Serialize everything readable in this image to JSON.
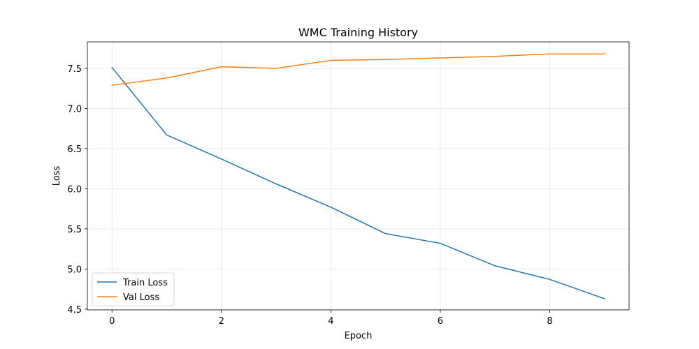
{
  "chart_data": {
    "type": "line",
    "title": "WMC Training History",
    "xlabel": "Epoch",
    "ylabel": "Loss",
    "x": [
      0,
      1,
      2,
      3,
      4,
      5,
      6,
      7,
      8,
      9
    ],
    "xlim": [
      -0.45,
      9.45
    ],
    "ylim": [
      4.49,
      7.83
    ],
    "xticks": [
      0,
      2,
      4,
      6,
      8
    ],
    "yticks": [
      4.5,
      5.0,
      5.5,
      6.0,
      6.5,
      7.0,
      7.5
    ],
    "grid": true,
    "legend_position": "lower-left",
    "series": [
      {
        "name": "Train Loss",
        "color": "#1f77b4",
        "values": [
          7.51,
          6.67,
          6.37,
          6.06,
          5.77,
          5.44,
          5.32,
          5.04,
          4.87,
          4.63
        ]
      },
      {
        "name": "Val Loss",
        "color": "#ff7f0e",
        "values": [
          7.29,
          7.38,
          7.52,
          7.5,
          7.6,
          7.61,
          7.63,
          7.65,
          7.68,
          7.68
        ]
      }
    ]
  }
}
